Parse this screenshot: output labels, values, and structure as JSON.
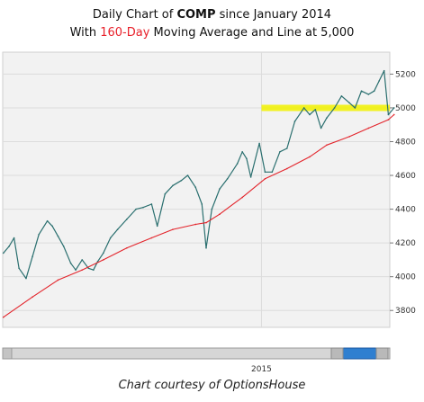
{
  "title": {
    "prefix": "Daily Chart of ",
    "symbol": "COMP",
    "suffix": " since January 2014",
    "line2_prefix": "With ",
    "line2_highlight": "160-Day",
    "line2_suffix": " Moving Average and Line at 5,000"
  },
  "caption": "Chart courtesy of OptionsHouse",
  "colors": {
    "price": "#2a6f6f",
    "moving_average": "#e3242b",
    "highlight_line": "#f2f200",
    "grid": "#dcdcdc",
    "plot_background": "#f2f2f2",
    "scrollbar_thumb": "#2f7fd0"
  },
  "chart_data": {
    "type": "line",
    "x_axis": {
      "start": "2014-01",
      "end": "2015-07",
      "tick_labels": [
        {
          "label": "2015",
          "date": "2015-01"
        }
      ]
    },
    "y_axis": {
      "ylim": [
        3700,
        5330
      ],
      "tick_labels": [
        "3800",
        "4000",
        "4200",
        "4400",
        "4600",
        "4800",
        "5000",
        "5200"
      ],
      "position": "right"
    },
    "grid": true,
    "reference_line": {
      "value": 5000,
      "from": "2015-01",
      "to": "2015-07"
    },
    "series": [
      {
        "key": "price",
        "x": [
          "2014-01-02",
          "2014-01-10",
          "2014-01-17",
          "2014-01-24",
          "2014-02-03",
          "2014-02-12",
          "2014-02-21",
          "2014-03-05",
          "2014-03-12",
          "2014-03-20",
          "2014-03-28",
          "2014-04-07",
          "2014-04-14",
          "2014-04-23",
          "2014-05-02",
          "2014-05-09",
          "2014-05-15",
          "2014-05-23",
          "2014-06-02",
          "2014-06-12",
          "2014-06-25",
          "2014-07-08",
          "2014-07-18",
          "2014-07-30",
          "2014-08-07",
          "2014-08-18",
          "2014-08-29",
          "2014-09-10",
          "2014-09-19",
          "2014-09-30",
          "2014-10-09",
          "2014-10-15",
          "2014-10-23",
          "2014-11-03",
          "2014-11-14",
          "2014-11-28",
          "2014-12-05",
          "2014-12-11",
          "2014-12-17",
          "2014-12-29",
          "2015-01-06",
          "2015-01-16",
          "2015-01-27",
          "2015-02-06",
          "2015-02-17",
          "2015-03-02",
          "2015-03-10",
          "2015-03-18",
          "2015-03-26",
          "2015-04-03",
          "2015-04-14",
          "2015-04-24",
          "2015-05-05",
          "2015-05-13",
          "2015-05-22",
          "2015-06-01",
          "2015-06-09",
          "2015-06-16",
          "2015-06-23",
          "2015-06-29",
          "2015-07-07"
        ],
        "values": [
          4140,
          4180,
          4230,
          4050,
          3990,
          4120,
          4250,
          4330,
          4300,
          4240,
          4180,
          4080,
          4040,
          4100,
          4050,
          4040,
          4090,
          4140,
          4230,
          4280,
          4340,
          4400,
          4410,
          4430,
          4300,
          4490,
          4540,
          4570,
          4600,
          4530,
          4430,
          4170,
          4400,
          4520,
          4580,
          4670,
          4740,
          4700,
          4590,
          4790,
          4620,
          4620,
          4740,
          4760,
          4920,
          5000,
          4960,
          4990,
          4880,
          4940,
          5000,
          5070,
          5030,
          5000,
          5100,
          5080,
          5100,
          5160,
          5220,
          4960,
          5000
        ]
      },
      {
        "key": "moving_average",
        "x": [
          "2014-01-02",
          "2014-02-12",
          "2014-03-20",
          "2014-04-23",
          "2014-05-23",
          "2014-06-25",
          "2014-07-30",
          "2014-08-29",
          "2014-09-30",
          "2014-10-15",
          "2014-11-03",
          "2014-12-05",
          "2015-01-06",
          "2015-02-06",
          "2015-03-10",
          "2015-04-03",
          "2015-05-05",
          "2015-06-01",
          "2015-06-29",
          "2015-07-07"
        ],
        "values": [
          3760,
          3880,
          3980,
          4040,
          4100,
          4170,
          4230,
          4280,
          4310,
          4320,
          4370,
          4470,
          4580,
          4640,
          4710,
          4780,
          4830,
          4880,
          4930,
          4960
        ]
      }
    ]
  }
}
